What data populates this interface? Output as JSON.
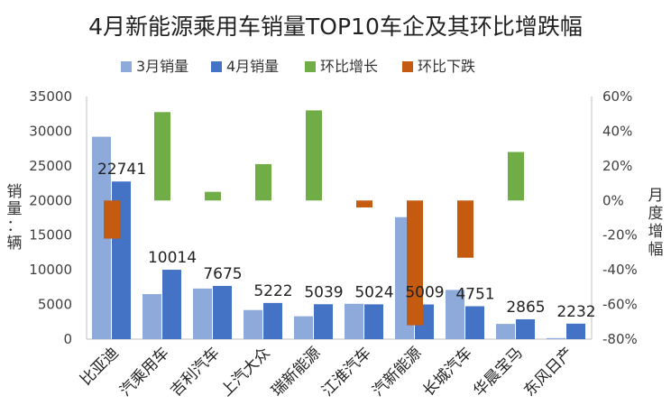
{
  "chart_data": {
    "type": "bar",
    "title": "4月新能源乘用车销量TOP10车企及其环比增跌幅",
    "categories": [
      "比亚迪",
      "汽乘用车",
      "吉利汽车",
      "上汽大众",
      "瑞新能源",
      "江淮汽车",
      "汽新能源",
      "长城汽车",
      "华晨宝马",
      "东风日产"
    ],
    "series": [
      {
        "name": "3月销量",
        "axis": "left",
        "color": "#8eaadb",
        "values": [
          29200,
          6500,
          7300,
          4200,
          3300,
          5100,
          17600,
          7100,
          2200,
          150
        ]
      },
      {
        "name": "4月销量",
        "axis": "left",
        "color": "#4472c4",
        "values": [
          22741,
          10014,
          7675,
          5222,
          5039,
          5024,
          5009,
          4751,
          2865,
          2232
        ]
      },
      {
        "name": "环比增长",
        "axis": "right",
        "color": "#70ad47",
        "values": [
          null,
          51,
          5,
          21,
          null,
          null,
          null,
          null,
          28,
          null
        ],
        "values_extra": {
          "4": 52
        }
      },
      {
        "name": "环比下跌",
        "axis": "right",
        "color": "#c55a11",
        "values": [
          -22,
          null,
          null,
          null,
          null,
          -4,
          -72,
          -33,
          null,
          null
        ]
      }
    ],
    "data_labels": [
      "22741",
      "10014",
      "7675",
      "5222",
      "5039",
      "5024",
      "5009",
      "4751",
      "2865",
      "2232"
    ],
    "left_axis": {
      "label": "销量：辆",
      "min": 0,
      "max": 35000,
      "step": 5000,
      "ticks": [
        "0",
        "5000",
        "10000",
        "15000",
        "20000",
        "25000",
        "30000",
        "35000"
      ]
    },
    "right_axis": {
      "label": "月度增幅",
      "min": -80,
      "max": 60,
      "step": 20,
      "ticks": [
        "-80%",
        "-60%",
        "-40%",
        "-20%",
        "0%",
        "20%",
        "40%",
        "60%"
      ]
    },
    "legend": [
      "3月销量",
      "4月销量",
      "环比增长",
      "环比下跌"
    ],
    "legend_position": "top"
  }
}
